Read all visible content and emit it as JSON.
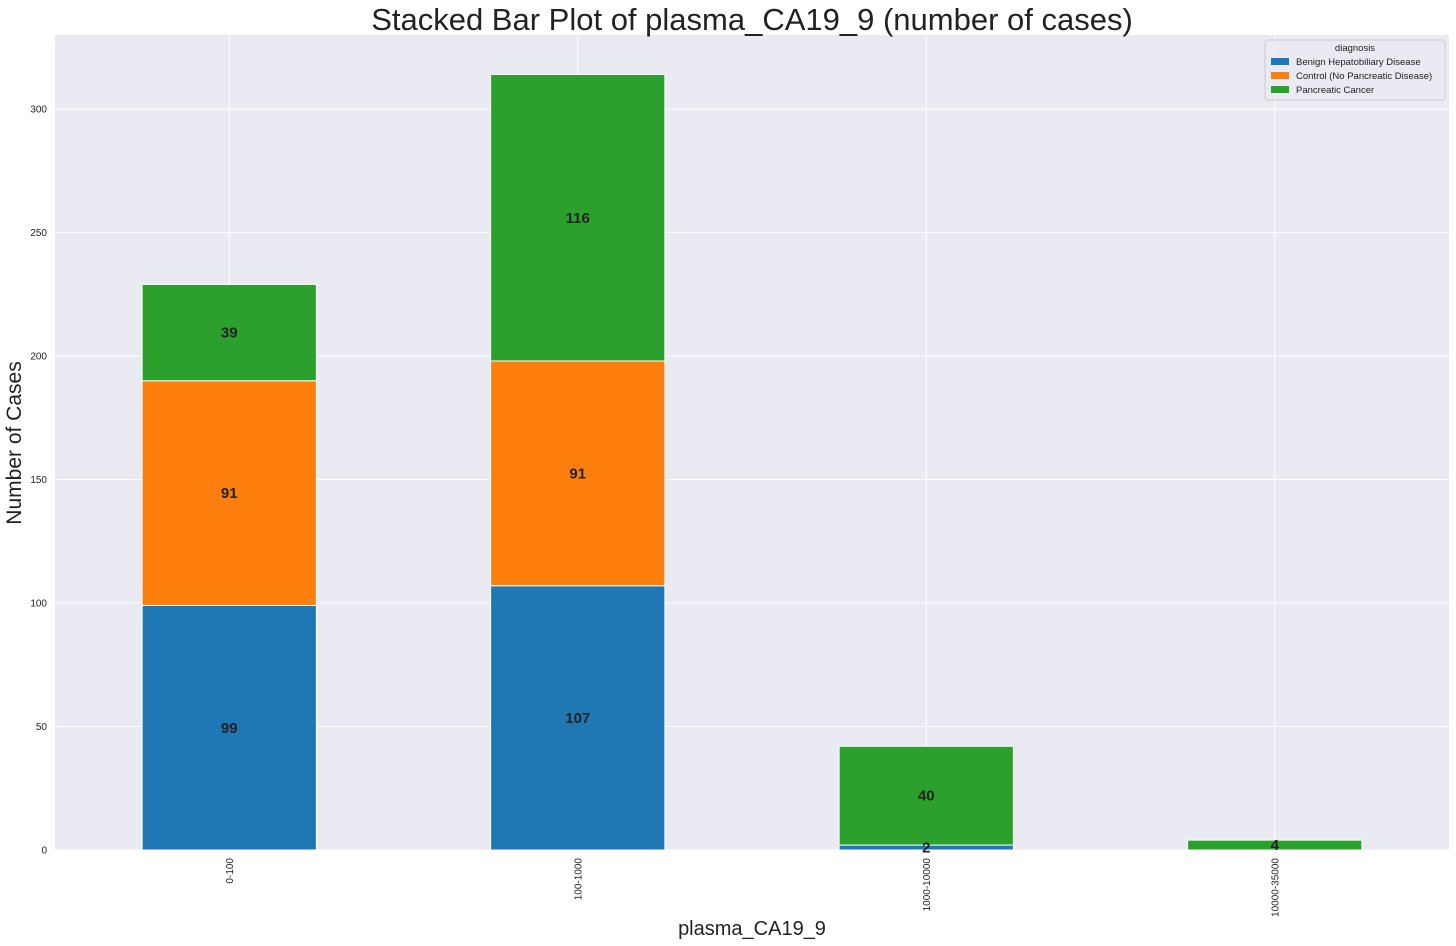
{
  "chart_data": {
    "type": "bar",
    "stacked": true,
    "title": "Stacked Bar Plot of plasma_CA19_9 (number of cases)",
    "xlabel": "plasma_CA19_9",
    "ylabel": "Number of Cases",
    "categories": [
      "0-100",
      "100-1000",
      "1000-10000",
      "10000-35000"
    ],
    "series": [
      {
        "name": "Benign Hepatobiliary Disease",
        "color": "#1f77b4",
        "values": [
          99,
          107,
          2,
          0
        ]
      },
      {
        "name": "Control (No Pancreatic Disease)",
        "color": "#ff7f0e",
        "values": [
          91,
          91,
          0,
          0
        ]
      },
      {
        "name": "Pancreatic Cancer",
        "color": "#2ca02c",
        "values": [
          39,
          116,
          40,
          4
        ]
      }
    ],
    "ylim": [
      0,
      330
    ],
    "yticks": [
      0,
      50,
      100,
      150,
      200,
      250,
      300
    ],
    "ytick_labels": [
      "0",
      "50",
      "100",
      "150",
      "200",
      "250",
      "300"
    ],
    "grid": true,
    "legend": {
      "title": "diagnosis",
      "location": "top-right"
    },
    "data_labels": [
      {
        "category": "0-100",
        "series": "Benign Hepatobiliary Disease",
        "text": "99"
      },
      {
        "category": "0-100",
        "series": "Control (No Pancreatic Disease)",
        "text": "91"
      },
      {
        "category": "0-100",
        "series": "Pancreatic Cancer",
        "text": "39"
      },
      {
        "category": "100-1000",
        "series": "Benign Hepatobiliary Disease",
        "text": "107"
      },
      {
        "category": "100-1000",
        "series": "Control (No Pancreatic Disease)",
        "text": "91"
      },
      {
        "category": "100-1000",
        "series": "Pancreatic Cancer",
        "text": "116"
      },
      {
        "category": "1000-10000",
        "series": "Benign Hepatobiliary Disease",
        "text": "2"
      },
      {
        "category": "1000-10000",
        "series": "Pancreatic Cancer",
        "text": "40"
      },
      {
        "category": "10000-35000",
        "series": "Pancreatic Cancer",
        "text": "4"
      }
    ],
    "background_color": "#eaeaf2",
    "grid_color": "#ffffff"
  }
}
